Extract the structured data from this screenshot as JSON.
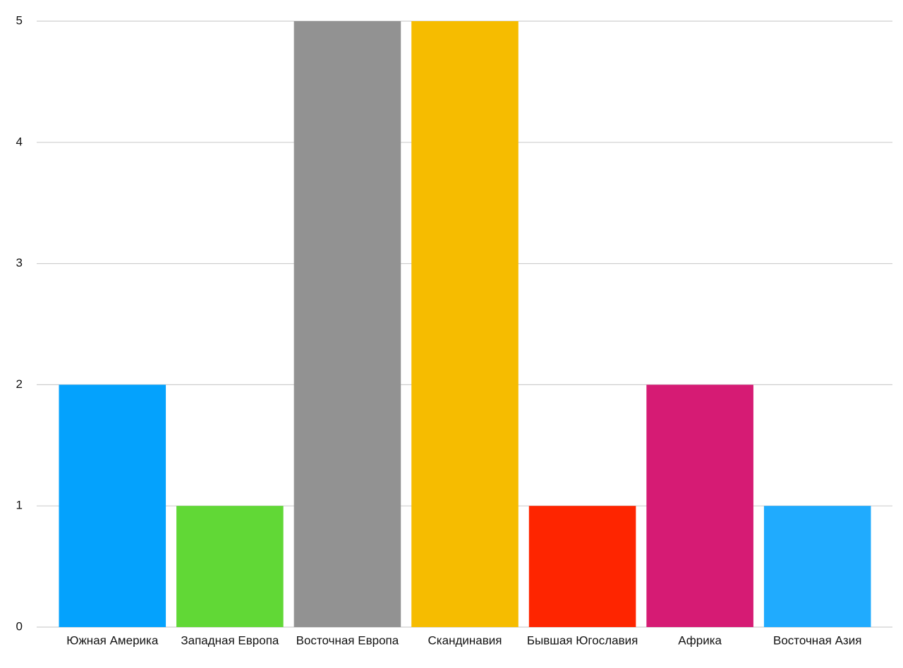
{
  "chart_data": {
    "type": "bar",
    "categories": [
      "Южная Америка",
      "Западная Европа",
      "Восточная Европа",
      "Скандинавия",
      "Бывшая Югославия",
      "Африка",
      "Восточная Азия"
    ],
    "values": [
      2,
      1,
      5,
      5,
      1,
      2,
      1
    ],
    "colors": [
      "#04a2fd",
      "#61d836",
      "#929292",
      "#f6bc00",
      "#fe2500",
      "#d61b74",
      "#20abfe"
    ],
    "ylim": [
      0,
      5
    ],
    "yticks": [
      0,
      1,
      2,
      3,
      4,
      5
    ],
    "grid": true
  }
}
